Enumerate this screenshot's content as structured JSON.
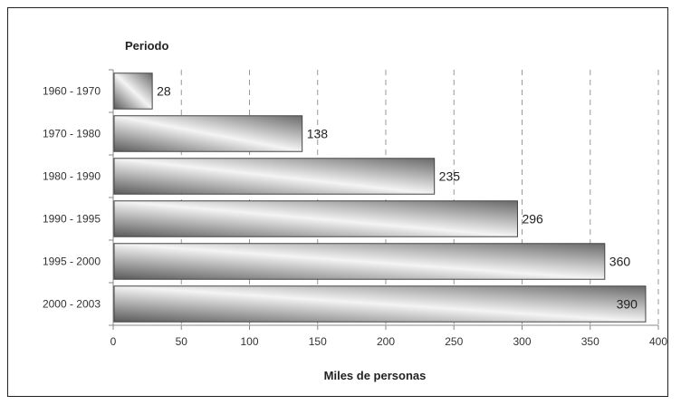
{
  "chart_data": {
    "type": "bar",
    "orientation": "horizontal",
    "categories": [
      "1960 - 1970",
      "1970 - 1980",
      "1980 - 1990",
      "1990 - 1995",
      "1995 - 2000",
      "2000 - 2003"
    ],
    "values": [
      28,
      138,
      235,
      296,
      360,
      390
    ],
    "xlabel": "Miles de personas",
    "ylabel": "Periodo",
    "xlim": [
      0,
      400
    ],
    "xticks": [
      0,
      50,
      100,
      150,
      200,
      250,
      300,
      350,
      400
    ],
    "xtick_labels": [
      "0",
      "50",
      "100",
      "150",
      "200",
      "250",
      "300",
      "350",
      "400"
    ],
    "grid": "vertical dashed",
    "bar_style": "gray metallic gradient"
  }
}
